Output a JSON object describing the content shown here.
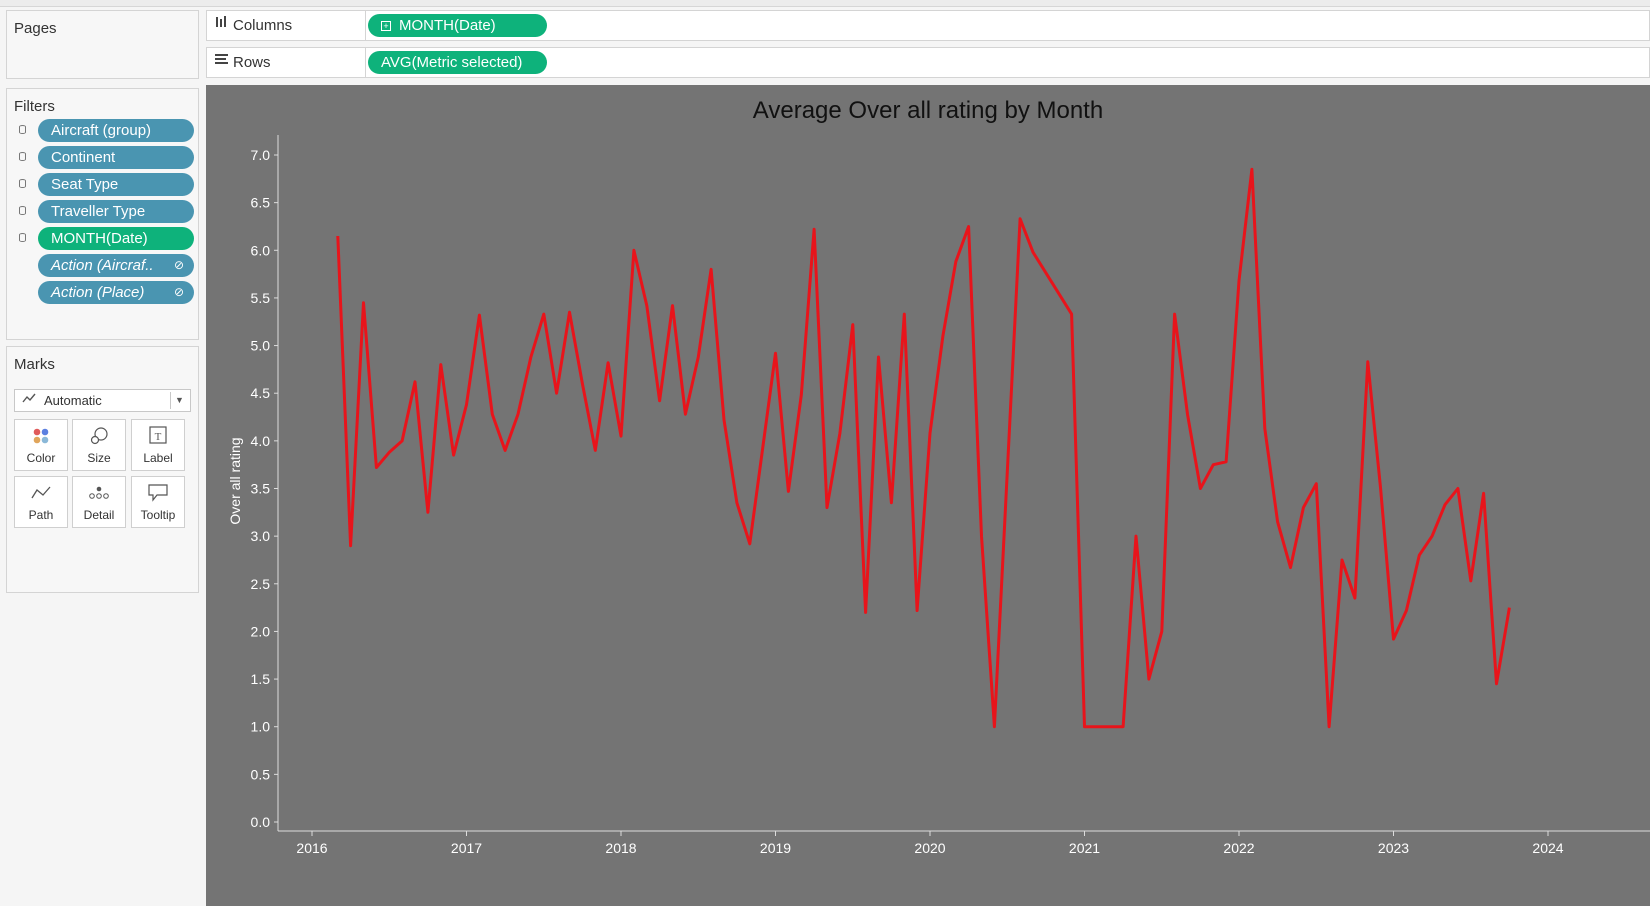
{
  "pages": {
    "title": "Pages"
  },
  "filters": {
    "title": "Filters",
    "items": [
      {
        "label": "Aircraft (group)",
        "color": "#4a95b1",
        "icon": "database-icon"
      },
      {
        "label": "Continent",
        "color": "#4a95b1",
        "icon": "database-icon"
      },
      {
        "label": "Seat Type",
        "color": "#4a95b1",
        "icon": "database-icon"
      },
      {
        "label": "Traveller Type",
        "color": "#4a95b1",
        "icon": "database-icon"
      },
      {
        "label": "MONTH(Date)",
        "color": "#0eb27b",
        "icon": "database-icon"
      },
      {
        "label": "Action (Aircraf..",
        "color": "#4a95b1",
        "icon": "link-icon"
      },
      {
        "label": "Action (Place)",
        "color": "#4a95b1",
        "icon": "link-icon"
      }
    ]
  },
  "marks": {
    "title": "Marks",
    "type_dropdown": {
      "label": "Automatic",
      "icon": "line-chart-icon"
    },
    "cards": [
      {
        "label": "Color",
        "icon": "color-dots-icon"
      },
      {
        "label": "Size",
        "icon": "size-circles-icon"
      },
      {
        "label": "Label",
        "icon": "text-label-icon"
      },
      {
        "label": "Path",
        "icon": "path-line-icon"
      },
      {
        "label": "Detail",
        "icon": "detail-dots-icon"
      },
      {
        "label": "Tooltip",
        "icon": "speech-bubble-icon"
      }
    ]
  },
  "shelves": {
    "columns": {
      "label": "Columns",
      "pill": "MONTH(Date)",
      "icon": "columns-icon"
    },
    "rows": {
      "label": "Rows",
      "pill": "AVG(Metric selected)",
      "icon": "rows-icon"
    }
  },
  "colors": {
    "viz_background": "#747474",
    "line": "#e8141b",
    "filter_pill": "#4a95b1",
    "date_pill": "#0eb27b"
  },
  "chart_data": {
    "type": "line",
    "title": "Average Over all rating by Month",
    "xlabel": "",
    "ylabel": "Over all rating",
    "x_ticks": [
      "2016",
      "2017",
      "2018",
      "2019",
      "2020",
      "2021",
      "2022",
      "2023",
      "2024"
    ],
    "y_ticks": [
      "0.0",
      "0.5",
      "1.0",
      "1.5",
      "2.0",
      "2.5",
      "3.0",
      "3.5",
      "4.0",
      "4.5",
      "5.0",
      "5.5",
      "6.0",
      "6.5",
      "7.0"
    ],
    "ylim": [
      0,
      7.2
    ],
    "xlim": [
      "2015-11",
      "2024-03"
    ],
    "grid": false,
    "legend": "none",
    "series": [
      {
        "points": [
          [
            "2016-03",
            6.15
          ],
          [
            "2016-04",
            2.9
          ],
          [
            "2016-05",
            5.45
          ],
          [
            "2016-06",
            3.72
          ],
          [
            "2016-07",
            3.88
          ],
          [
            "2016-08",
            4.0
          ],
          [
            "2016-09",
            4.62
          ],
          [
            "2016-10",
            3.25
          ],
          [
            "2016-11",
            4.8
          ],
          [
            "2016-12",
            3.85
          ],
          [
            "2017-01",
            4.38
          ],
          [
            "2017-02",
            5.32
          ],
          [
            "2017-03",
            4.28
          ],
          [
            "2017-04",
            3.9
          ],
          [
            "2017-05",
            4.28
          ],
          [
            "2017-06",
            4.88
          ],
          [
            "2017-07",
            5.33
          ],
          [
            "2017-08",
            4.5
          ],
          [
            "2017-09",
            5.35
          ],
          [
            "2017-10",
            4.6
          ],
          [
            "2017-11",
            3.9
          ],
          [
            "2017-12",
            4.82
          ],
          [
            "2018-01",
            4.05
          ],
          [
            "2018-02",
            6.0
          ],
          [
            "2018-03",
            5.42
          ],
          [
            "2018-04",
            4.42
          ],
          [
            "2018-05",
            5.42
          ],
          [
            "2018-06",
            4.28
          ],
          [
            "2018-07",
            4.88
          ],
          [
            "2018-08",
            5.8
          ],
          [
            "2018-09",
            4.22
          ],
          [
            "2018-10",
            3.35
          ],
          [
            "2018-11",
            2.92
          ],
          [
            "2019-01",
            4.92
          ],
          [
            "2019-02",
            3.47
          ],
          [
            "2019-03",
            4.48
          ],
          [
            "2019-04",
            6.22
          ],
          [
            "2019-05",
            3.3
          ],
          [
            "2019-06",
            4.08
          ],
          [
            "2019-07",
            5.22
          ],
          [
            "2019-08",
            2.2
          ],
          [
            "2019-09",
            4.88
          ],
          [
            "2019-10",
            3.35
          ],
          [
            "2019-11",
            5.33
          ],
          [
            "2019-12",
            2.22
          ],
          [
            "2020-01",
            4.08
          ],
          [
            "2020-02",
            5.1
          ],
          [
            "2020-03",
            5.88
          ],
          [
            "2020-04",
            6.25
          ],
          [
            "2020-05",
            3.0
          ],
          [
            "2020-06",
            1.0
          ],
          [
            "2020-08",
            6.33
          ],
          [
            "2020-09",
            5.98
          ],
          [
            "2020-12",
            5.33
          ],
          [
            "2021-01",
            1.0
          ],
          [
            "2021-04",
            1.0
          ],
          [
            "2021-05",
            3.0
          ],
          [
            "2021-06",
            1.5
          ],
          [
            "2021-07",
            2.0
          ],
          [
            "2021-08",
            5.33
          ],
          [
            "2021-09",
            4.28
          ],
          [
            "2021-10",
            3.5
          ],
          [
            "2021-11",
            3.75
          ],
          [
            "2021-12",
            3.78
          ],
          [
            "2022-01",
            5.68
          ],
          [
            "2022-02",
            6.85
          ],
          [
            "2022-03",
            4.13
          ],
          [
            "2022-04",
            3.15
          ],
          [
            "2022-05",
            2.67
          ],
          [
            "2022-06",
            3.3
          ],
          [
            "2022-07",
            3.55
          ],
          [
            "2022-08",
            1.0
          ],
          [
            "2022-09",
            2.75
          ],
          [
            "2022-10",
            2.35
          ],
          [
            "2022-11",
            4.83
          ],
          [
            "2022-12",
            3.5
          ],
          [
            "2023-01",
            1.92
          ],
          [
            "2023-02",
            2.22
          ],
          [
            "2023-03",
            2.8
          ],
          [
            "2023-04",
            3.0
          ],
          [
            "2023-05",
            3.33
          ],
          [
            "2023-06",
            3.5
          ],
          [
            "2023-07",
            2.53
          ],
          [
            "2023-08",
            3.45
          ],
          [
            "2023-09",
            1.45
          ],
          [
            "2023-10",
            2.25
          ]
        ]
      }
    ]
  }
}
